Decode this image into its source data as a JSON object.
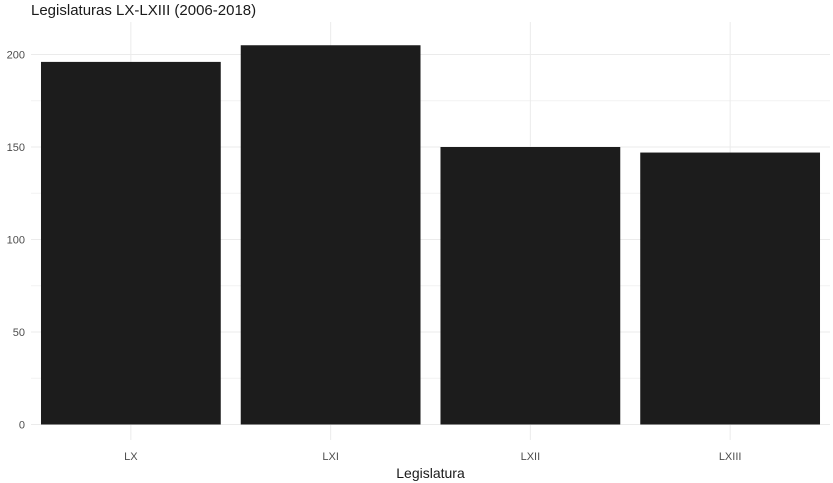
{
  "chart_data": {
    "type": "bar",
    "title": "Legislaturas LX-LXIII (2006-2018)",
    "xlabel": "Legislatura",
    "ylabel": "",
    "categories": [
      "LX",
      "LXI",
      "LXII",
      "LXIII"
    ],
    "values": [
      196,
      205,
      150,
      147
    ],
    "ylim": [
      0,
      215
    ],
    "yticks": [
      0,
      50,
      100,
      150,
      200
    ],
    "bar_color": "#1c1c1c",
    "grid": true,
    "legend": "none"
  }
}
